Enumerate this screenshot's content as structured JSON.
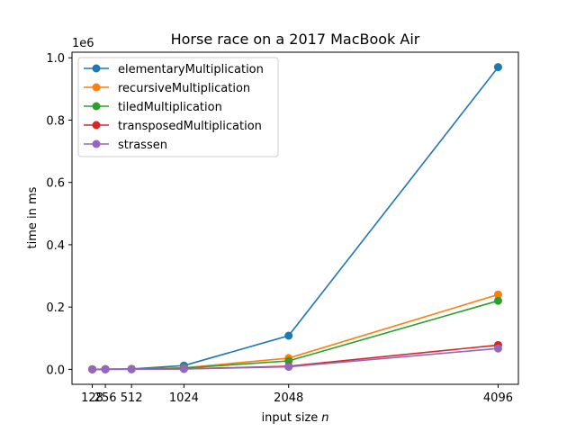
{
  "chart_data": {
    "type": "line",
    "title": "Horse race on a 2017 MacBook Air",
    "xlabel": "input size",
    "xlabel_var": "n",
    "ylabel": "time in ms",
    "y_offset_label": "1e6",
    "xlim": [
      128,
      4096
    ],
    "ylim": [
      0,
      1000000
    ],
    "x": [
      128,
      256,
      512,
      1024,
      2048,
      4096
    ],
    "x_ticks": [
      128,
      256,
      512,
      1024,
      2048,
      4096
    ],
    "y_ticks": [
      0.0,
      0.2,
      0.4,
      0.6,
      0.8,
      1.0
    ],
    "y_tick_labels": [
      "0.0",
      "0.2",
      "0.4",
      "0.6",
      "0.8",
      "1.0"
    ],
    "legend_position": "upper-left",
    "grid": false,
    "series": [
      {
        "name": "elementaryMultiplication",
        "color": "#1f77b4",
        "values": [
          80,
          700,
          1500,
          12000,
          108000,
          970000
        ]
      },
      {
        "name": "recursiveMultiplication",
        "color": "#ff7f0e",
        "values": [
          60,
          400,
          900,
          5000,
          36000,
          240000
        ]
      },
      {
        "name": "tiledMultiplication",
        "color": "#2ca02c",
        "values": [
          50,
          350,
          800,
          4000,
          27000,
          220000
        ]
      },
      {
        "name": "transposedMultiplication",
        "color": "#d62728",
        "values": [
          30,
          150,
          400,
          1500,
          10000,
          78000
        ]
      },
      {
        "name": "strassen",
        "color": "#9467bd",
        "values": [
          30,
          120,
          350,
          1200,
          8000,
          67000
        ]
      }
    ]
  }
}
